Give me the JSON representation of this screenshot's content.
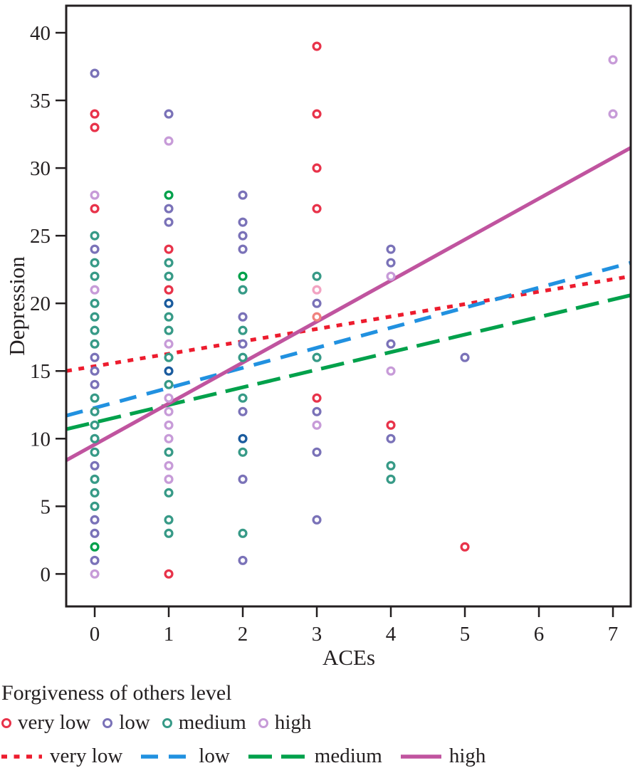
{
  "colors": {
    "very_low": "#e8334a",
    "low": "#7a72b8",
    "medium": "#379a87",
    "high": "#c79bd8",
    "overlap_dark_blue": "#1a5b9e",
    "bright_green": "#00a14b",
    "pink": "#f2a3c2",
    "salmon": "#f0827e",
    "line_very_low": "#ed1c2e",
    "line_low": "#2191e0",
    "line_medium": "#00a14b",
    "line_high": "#c0549f",
    "axis": "#231f20"
  },
  "legend": {
    "title": "Forgiveness of others level",
    "marker_entries": [
      {
        "key": "very_low",
        "label": "very low"
      },
      {
        "key": "low",
        "label": "low"
      },
      {
        "key": "medium",
        "label": "medium"
      },
      {
        "key": "high",
        "label": "high"
      }
    ],
    "line_entries": [
      {
        "key": "line_very_low",
        "label": "very low",
        "style": "dotted"
      },
      {
        "key": "line_low",
        "label": "low",
        "style": "dashed"
      },
      {
        "key": "line_medium",
        "label": "medium",
        "style": "long-dash"
      },
      {
        "key": "line_high",
        "label": "high",
        "style": "solid"
      }
    ]
  },
  "chart_data": {
    "type": "scatter",
    "title": "",
    "xlabel": "ACEs",
    "ylabel": "Depression",
    "xlim": [
      -0.385,
      7.24
    ],
    "ylim": [
      -2.4,
      42.0
    ],
    "x_ticks": [
      0,
      1,
      2,
      3,
      4,
      5,
      6,
      7
    ],
    "y_ticks": [
      0,
      5,
      10,
      15,
      20,
      25,
      30,
      35,
      40
    ],
    "grid": false,
    "legend_position": "bottom-left",
    "series": [
      {
        "name": "very low",
        "color_key": "very_low",
        "points": [
          [
            0,
            34
          ],
          [
            0,
            33
          ],
          [
            0,
            27
          ],
          [
            1,
            24
          ],
          [
            1,
            21
          ],
          [
            1,
            0
          ],
          [
            3,
            39
          ],
          [
            3,
            34
          ],
          [
            3,
            30
          ],
          [
            3,
            27
          ],
          [
            3,
            13
          ],
          [
            4,
            11
          ],
          [
            5,
            2
          ]
        ]
      },
      {
        "name": "low",
        "color_key": "low",
        "points": [
          [
            0,
            37
          ],
          [
            0,
            24
          ],
          [
            0,
            16
          ],
          [
            0,
            15
          ],
          [
            0,
            14
          ],
          [
            0,
            8
          ],
          [
            0,
            4
          ],
          [
            0,
            3
          ],
          [
            0,
            1
          ],
          [
            1,
            34
          ],
          [
            1,
            27
          ],
          [
            1,
            26
          ],
          [
            2,
            28
          ],
          [
            2,
            26
          ],
          [
            2,
            25
          ],
          [
            2,
            24
          ],
          [
            2,
            19
          ],
          [
            2,
            17
          ],
          [
            2,
            12
          ],
          [
            2,
            7
          ],
          [
            2,
            1
          ],
          [
            3,
            20
          ],
          [
            3,
            12
          ],
          [
            3,
            9
          ],
          [
            3,
            4
          ],
          [
            4,
            24
          ],
          [
            4,
            23
          ],
          [
            4,
            17
          ],
          [
            4,
            10
          ],
          [
            5,
            16
          ]
        ]
      },
      {
        "name": "medium",
        "color_key": "medium",
        "points": [
          [
            0,
            25
          ],
          [
            0,
            23
          ],
          [
            0,
            22
          ],
          [
            0,
            20
          ],
          [
            0,
            19
          ],
          [
            0,
            18
          ],
          [
            0,
            17
          ],
          [
            0,
            13
          ],
          [
            0,
            12
          ],
          [
            0,
            11
          ],
          [
            0,
            10
          ],
          [
            0,
            9
          ],
          [
            0,
            7
          ],
          [
            0,
            6
          ],
          [
            0,
            5
          ],
          [
            1,
            23
          ],
          [
            1,
            22
          ],
          [
            1,
            19
          ],
          [
            1,
            18
          ],
          [
            1,
            16
          ],
          [
            1,
            14
          ],
          [
            1,
            9
          ],
          [
            1,
            6
          ],
          [
            1,
            4
          ],
          [
            1,
            3
          ],
          [
            2,
            21
          ],
          [
            2,
            18
          ],
          [
            2,
            16
          ],
          [
            2,
            13
          ],
          [
            2,
            9
          ],
          [
            2,
            3
          ],
          [
            3,
            22
          ],
          [
            3,
            16
          ],
          [
            4,
            8
          ],
          [
            4,
            7
          ]
        ]
      },
      {
        "name": "high",
        "color_key": "high",
        "points": [
          [
            0,
            28
          ],
          [
            0,
            21
          ],
          [
            0,
            0
          ],
          [
            1,
            32
          ],
          [
            1,
            17
          ],
          [
            1,
            13
          ],
          [
            1,
            12
          ],
          [
            1,
            11
          ],
          [
            1,
            10
          ],
          [
            1,
            8
          ],
          [
            1,
            7
          ],
          [
            3,
            11
          ],
          [
            4,
            22
          ],
          [
            4,
            15
          ],
          [
            7,
            38
          ],
          [
            7,
            34
          ]
        ]
      },
      {
        "name": "overlap dark blue",
        "color_key": "overlap_dark_blue",
        "points": [
          [
            1,
            20
          ],
          [
            1,
            15
          ],
          [
            2,
            10
          ]
        ]
      },
      {
        "name": "bright green",
        "color_key": "bright_green",
        "points": [
          [
            0,
            2
          ],
          [
            1,
            28
          ],
          [
            2,
            22
          ]
        ]
      },
      {
        "name": "pink",
        "color_key": "pink",
        "points": [
          [
            3,
            21
          ]
        ]
      },
      {
        "name": "salmon",
        "color_key": "salmon",
        "points": [
          [
            3,
            19
          ]
        ]
      }
    ],
    "fit_lines": [
      {
        "name": "very low",
        "style": "dotted",
        "color_key": "line_very_low",
        "endpoints": [
          [
            -0.385,
            15.0
          ],
          [
            7.24,
            22.0
          ]
        ]
      },
      {
        "name": "low",
        "style": "dashed",
        "color_key": "line_low",
        "endpoints": [
          [
            -0.385,
            11.7
          ],
          [
            7.24,
            23.0
          ]
        ]
      },
      {
        "name": "medium",
        "style": "long-dash",
        "color_key": "line_medium",
        "endpoints": [
          [
            -0.385,
            10.7
          ],
          [
            7.24,
            20.6
          ]
        ]
      },
      {
        "name": "high",
        "style": "solid",
        "color_key": "line_high",
        "endpoints": [
          [
            -0.385,
            8.4
          ],
          [
            7.24,
            31.5
          ]
        ]
      }
    ]
  }
}
